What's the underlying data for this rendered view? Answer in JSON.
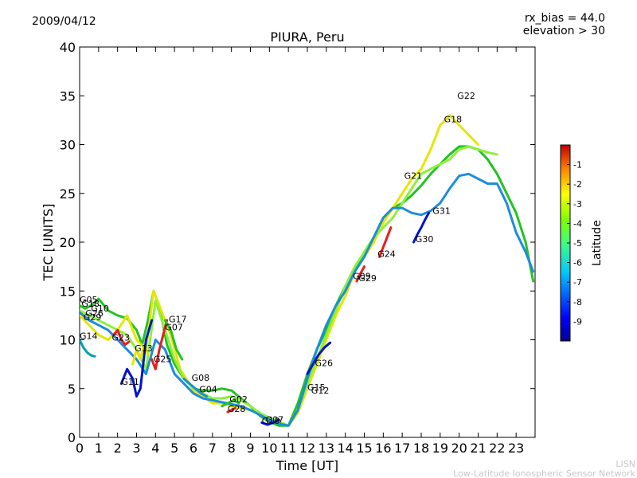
{
  "header": {
    "date": "2009/04/12",
    "rx_bias": "rx_bias = 44.0",
    "elevation": "elevation > 30"
  },
  "footer": {
    "line1": "LISN",
    "line2": "Low-Latitude Ionospheric Sensor Network"
  },
  "colors": {
    "line_green": "#22c322",
    "line_yellow": "#e6e600",
    "line_blue": "#1e8cdc",
    "line_darkblue": "#0014c8",
    "line_red": "#e61e1e",
    "line_lightgreen": "#8cf03c",
    "line_teal": "#00a0b4"
  },
  "chart_data": {
    "type": "line",
    "title": "PIURA, Peru",
    "xlabel": "Time [UT]",
    "ylabel": "TEC [UNITS]",
    "xlim": [
      0,
      24
    ],
    "ylim": [
      0,
      40
    ],
    "xticks": [
      "0",
      "1",
      "2",
      "3",
      "4",
      "5",
      "6",
      "7",
      "8",
      "9",
      "10",
      "11",
      "12",
      "13",
      "14",
      "15",
      "16",
      "17",
      "18",
      "19",
      "20",
      "21",
      "22",
      "23"
    ],
    "yticks": [
      "0",
      "5",
      "10",
      "15",
      "20",
      "25",
      "30",
      "35",
      "40"
    ],
    "grid": false,
    "colorbar": {
      "label": "Latitude",
      "ticks": [
        "-1",
        "-2",
        "-3",
        "-4",
        "-5",
        "-6",
        "-7",
        "-8",
        "-9"
      ],
      "range": [
        -10,
        0
      ]
    },
    "series": [
      {
        "name": "G22",
        "color": "#22c322",
        "x": [
          0,
          0.3,
          0.6,
          1,
          1.5,
          2,
          2.5,
          3,
          3.3,
          3.6,
          3.9,
          4.2,
          4.6,
          5,
          5.5,
          6,
          6.5,
          7,
          7.5,
          8,
          8.5,
          9,
          9.5,
          10,
          10.5,
          11,
          11.5,
          12,
          12.5,
          13,
          13.5,
          14,
          14.5,
          15,
          15.5,
          16,
          16.5,
          17,
          17.5,
          18,
          18.5,
          19,
          19.5,
          20,
          20.5,
          21,
          21.5,
          22,
          22.5,
          23,
          23.5,
          23.9
        ],
        "y": [
          13.5,
          13.2,
          13.5,
          14.2,
          13,
          12.5,
          12.2,
          11,
          9.5,
          12,
          15,
          13.5,
          9.5,
          7.5,
          6,
          5,
          4.8,
          4.8,
          5,
          4.8,
          4,
          3.2,
          2.2,
          1.6,
          1.2,
          1.2,
          3.5,
          6.5,
          9,
          11,
          13.5,
          15.5,
          17,
          19,
          20.5,
          22.5,
          23.5,
          24,
          24.8,
          25.8,
          27,
          28,
          29,
          29.8,
          29.8,
          29.5,
          28.5,
          27,
          25,
          23,
          20,
          16
        ]
      },
      {
        "name": "G18",
        "color": "#e6e600",
        "x": [
          0,
          0.5,
          1,
          1.5,
          2,
          2.5,
          3,
          3.5,
          3.9,
          4.3,
          4.8,
          5.3,
          6,
          6.5,
          7,
          7.5,
          8,
          8.5,
          9,
          9.5,
          10,
          10.5,
          11,
          11.5,
          12,
          12.5,
          13,
          13.5,
          14,
          14.5,
          15,
          15.5,
          16,
          16.5,
          17,
          17.5,
          18,
          18.5,
          19,
          19.5,
          20,
          20.5,
          21
        ],
        "y": [
          12.5,
          11.5,
          10.5,
          10,
          11,
          12.5,
          10,
          9,
          15,
          13,
          10.5,
          7,
          4.8,
          4.2,
          3.5,
          3.5,
          3.2,
          3,
          2.8,
          2.4,
          2,
          1.5,
          1.2,
          2.5,
          5,
          7.5,
          10,
          12.5,
          14.5,
          17,
          18.5,
          20,
          22,
          23.5,
          25,
          26.5,
          27.5,
          29.5,
          32,
          33,
          32,
          31,
          30
        ]
      },
      {
        "name": "G21",
        "color": "#8cf03c",
        "x": [
          0,
          0.5,
          1,
          1.5,
          2,
          2.5,
          3,
          3.5,
          4,
          4.5,
          5,
          5.5,
          6,
          6.5,
          7,
          7.5,
          8,
          8.5,
          9,
          9.5,
          10,
          10.5,
          11,
          11.5,
          12,
          12.5,
          13,
          13.5,
          14,
          14.5,
          15,
          15.5,
          16,
          16.5,
          17,
          17.5,
          18,
          18.5,
          19,
          19.5,
          20,
          20.5,
          21,
          21.5,
          22
        ],
        "y": [
          13,
          12.5,
          12,
          11.5,
          11,
          10.5,
          9,
          7,
          14,
          11,
          8,
          6,
          5,
          4.5,
          4,
          4,
          4.2,
          3.8,
          3.2,
          2.5,
          2,
          1.6,
          1.2,
          2.8,
          5.5,
          8,
          10.5,
          13,
          15.5,
          17.5,
          19,
          20.5,
          21.5,
          22.5,
          24,
          25.5,
          27,
          27.5,
          28,
          28.5,
          29.5,
          29.8,
          29.5,
          29.2,
          29
        ]
      },
      {
        "name": "G31",
        "color": "#1e8cdc",
        "x": [
          0,
          0.5,
          1,
          1.5,
          2,
          2.5,
          3,
          3.5,
          4,
          4.5,
          5,
          5.5,
          6,
          6.5,
          7,
          7.5,
          8,
          8.5,
          9,
          9.5,
          10,
          10.5,
          11,
          11.5,
          12,
          12.5,
          13,
          13.5,
          14,
          14.5,
          15,
          15.5,
          16,
          16.5,
          17,
          17.5,
          18,
          18.5,
          19,
          19.5,
          20,
          20.5,
          21,
          21.5,
          22,
          22.5,
          23,
          23.5,
          23.9
        ],
        "y": [
          12.8,
          12,
          11.5,
          11,
          10,
          9,
          8,
          6.5,
          10,
          9,
          6.5,
          5.5,
          4.5,
          4,
          3.8,
          3.6,
          3.4,
          3.2,
          2.8,
          2.3,
          1.8,
          1.4,
          1.2,
          2.8,
          6,
          9,
          11.5,
          13.5,
          15,
          17,
          18.5,
          20.5,
          22.5,
          23.5,
          23.5,
          23,
          22.8,
          23.2,
          24,
          25.5,
          26.8,
          27,
          26.5,
          26,
          26,
          24,
          21,
          19,
          17
        ]
      },
      {
        "name": "G14",
        "color": "#00a0b4",
        "x": [
          0,
          0.2,
          0.4,
          0.6,
          0.8
        ],
        "y": [
          10,
          9.2,
          8.7,
          8.4,
          8.3
        ]
      },
      {
        "name": "G23",
        "color": "#e61e1e",
        "x": [
          1.8,
          2.0,
          2.2,
          2.4,
          2.6
        ],
        "y": [
          10.5,
          11,
          10,
          9.5,
          9.8
        ]
      },
      {
        "name": "G13",
        "color": "#e6e600",
        "x": [
          2.8,
          3.0,
          3.2,
          3.4,
          3.6
        ],
        "y": [
          7.5,
          9,
          8,
          9.5,
          8.5
        ]
      },
      {
        "name": "G11",
        "color": "#0014c8",
        "x": [
          2.2,
          2.5,
          2.8,
          3.0,
          3.2,
          3.5,
          3.8
        ],
        "y": [
          5.5,
          7,
          6,
          4.2,
          5,
          10,
          12
        ]
      },
      {
        "name": "G25",
        "color": "#e61e1e",
        "x": [
          3.8,
          4.0,
          4.2,
          4.4,
          4.6
        ],
        "y": [
          8,
          7,
          9,
          10.5,
          12
        ]
      },
      {
        "name": "G17",
        "color": "#22c322",
        "x": [
          4.5,
          4.8,
          5.1,
          5.4
        ],
        "y": [
          12,
          11,
          9,
          8
        ]
      },
      {
        "name": "G08",
        "color": "#1e8cdc",
        "x": [
          5.5,
          5.8,
          6.1,
          6.4,
          6.7
        ],
        "y": [
          6,
          5.5,
          5,
          4.5,
          4.2
        ]
      },
      {
        "name": "G02",
        "color": "#22c322",
        "x": [
          7.5,
          7.8,
          8.1,
          8.4
        ],
        "y": [
          3.2,
          3.5,
          3.8,
          3.5
        ]
      },
      {
        "name": "G28",
        "color": "#e61e1e",
        "x": [
          7.8,
          8.0,
          8.2
        ],
        "y": [
          2.6,
          2.8,
          3
        ]
      },
      {
        "name": "G10",
        "color": "#0014c8",
        "x": [
          9.6,
          9.9,
          10.2,
          10.5
        ],
        "y": [
          1.5,
          1.3,
          1.5,
          1.8
        ]
      },
      {
        "name": "G26",
        "color": "#0014c8",
        "x": [
          12,
          12.3,
          12.6,
          12.9,
          13.2
        ],
        "y": [
          6.5,
          7.5,
          8.5,
          9.2,
          9.7
        ]
      },
      {
        "name": "G24",
        "color": "#e61e1e",
        "x": [
          15.8,
          16.0,
          16.2,
          16.4
        ],
        "y": [
          18.5,
          19.5,
          20.5,
          21.5
        ]
      },
      {
        "name": "G30",
        "color": "#0014c8",
        "x": [
          17.6,
          17.8,
          18.0,
          18.2,
          18.4
        ],
        "y": [
          20,
          20.8,
          21.5,
          22.3,
          23
        ]
      },
      {
        "name": "G29",
        "color": "#e61e1e",
        "x": [
          14.6,
          14.8,
          15.0
        ],
        "y": [
          16,
          16.8,
          17.5
        ]
      }
    ],
    "annotations": [
      {
        "text": "G22",
        "x": 19.9,
        "y": 34.7
      },
      {
        "text": "G18",
        "x": 19.2,
        "y": 32.3
      },
      {
        "text": "G21",
        "x": 17.1,
        "y": 26.5
      },
      {
        "text": "G31",
        "x": 18.6,
        "y": 22.9
      },
      {
        "text": "G30",
        "x": 17.7,
        "y": 20.0
      },
      {
        "text": "G24",
        "x": 15.7,
        "y": 18.5
      },
      {
        "text": "G09",
        "x": 14.4,
        "y": 16.2
      },
      {
        "text": "G29",
        "x": 14.7,
        "y": 16.0
      },
      {
        "text": "G26",
        "x": 12.4,
        "y": 7.3
      },
      {
        "text": "G15",
        "x": 12.0,
        "y": 4.8
      },
      {
        "text": "G12",
        "x": 12.2,
        "y": 4.5
      },
      {
        "text": "G02",
        "x": 7.9,
        "y": 3.6
      },
      {
        "text": "G28",
        "x": 7.8,
        "y": 2.6
      },
      {
        "text": "G10",
        "x": 9.6,
        "y": 1.4
      },
      {
        "text": "G07",
        "x": 9.8,
        "y": 1.5
      },
      {
        "text": "G08",
        "x": 5.9,
        "y": 5.8
      },
      {
        "text": "G04",
        "x": 6.3,
        "y": 4.6
      },
      {
        "text": "G25",
        "x": 3.9,
        "y": 7.7
      },
      {
        "text": "G13",
        "x": 2.9,
        "y": 8.8
      },
      {
        "text": "G11",
        "x": 2.2,
        "y": 5.4
      },
      {
        "text": "G23",
        "x": 1.7,
        "y": 9.9
      },
      {
        "text": "G14",
        "x": 0.0,
        "y": 10.1
      },
      {
        "text": "G17",
        "x": 4.7,
        "y": 11.8
      },
      {
        "text": "G07",
        "x": 4.5,
        "y": 11.0
      },
      {
        "text": "G05",
        "x": 0.0,
        "y": 13.8
      },
      {
        "text": "G18",
        "x": 0.1,
        "y": 13.4
      },
      {
        "text": "G10",
        "x": 0.6,
        "y": 12.9
      },
      {
        "text": "G26",
        "x": 0.3,
        "y": 12.4
      },
      {
        "text": "G29",
        "x": 0.2,
        "y": 12.0
      }
    ]
  }
}
